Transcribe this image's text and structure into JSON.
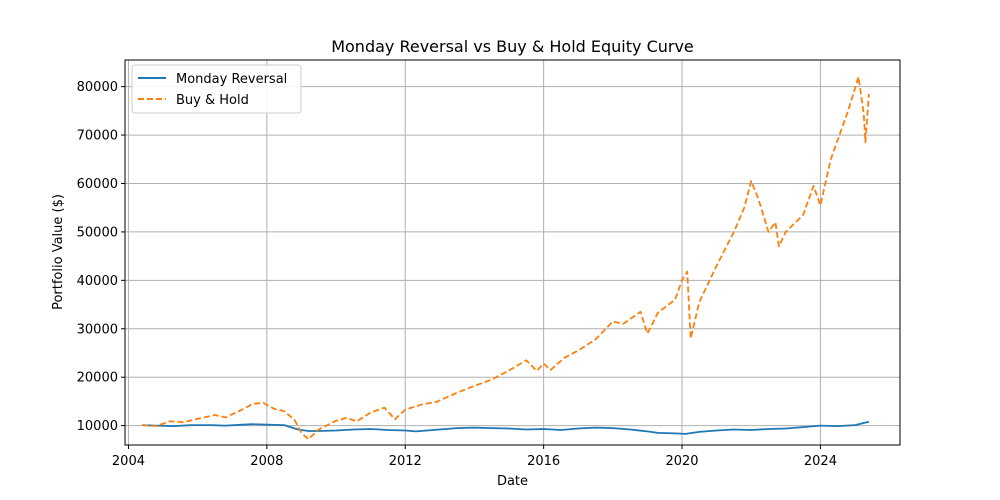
{
  "chart_data": {
    "type": "line",
    "title": "Monday Reversal vs Buy & Hold Equity Curve",
    "xlabel": "Date",
    "ylabel": "Portfolio Value ($)",
    "xlim": [
      2003.9,
      2026.3
    ],
    "ylim": [
      6000,
      85500
    ],
    "x_ticks": [
      2004,
      2008,
      2012,
      2016,
      2020,
      2024
    ],
    "x_tick_labels": [
      "2004",
      "2008",
      "2012",
      "2016",
      "2020",
      "2024"
    ],
    "y_ticks": [
      10000,
      20000,
      30000,
      40000,
      50000,
      60000,
      70000,
      80000
    ],
    "y_tick_labels": [
      "10000",
      "20000",
      "30000",
      "40000",
      "50000",
      "60000",
      "70000",
      "80000"
    ],
    "grid": true,
    "legend_position": "top-left",
    "series": [
      {
        "name": "Monday Reversal",
        "color": "#1f77b4",
        "style": "solid",
        "points": [
          [
            2004.4,
            10100
          ],
          [
            2004.8,
            10000
          ],
          [
            2005.3,
            9900
          ],
          [
            2005.8,
            10100
          ],
          [
            2006.4,
            10100
          ],
          [
            2006.8,
            10000
          ],
          [
            2007.3,
            10200
          ],
          [
            2007.6,
            10300
          ],
          [
            2008.0,
            10200
          ],
          [
            2008.5,
            10100
          ],
          [
            2008.9,
            9200
          ],
          [
            2009.2,
            8900
          ],
          [
            2009.5,
            8900
          ],
          [
            2010.0,
            9000
          ],
          [
            2010.5,
            9200
          ],
          [
            2011.0,
            9300
          ],
          [
            2011.5,
            9100
          ],
          [
            2012.0,
            9000
          ],
          [
            2012.3,
            8800
          ],
          [
            2013.0,
            9200
          ],
          [
            2013.5,
            9500
          ],
          [
            2014.0,
            9600
          ],
          [
            2014.5,
            9500
          ],
          [
            2015.0,
            9400
          ],
          [
            2015.5,
            9200
          ],
          [
            2016.0,
            9300
          ],
          [
            2016.5,
            9100
          ],
          [
            2017.0,
            9400
          ],
          [
            2017.5,
            9600
          ],
          [
            2018.0,
            9500
          ],
          [
            2018.5,
            9200
          ],
          [
            2019.0,
            8800
          ],
          [
            2019.3,
            8500
          ],
          [
            2019.8,
            8400
          ],
          [
            2020.1,
            8300
          ],
          [
            2020.5,
            8700
          ],
          [
            2021.0,
            9000
          ],
          [
            2021.5,
            9200
          ],
          [
            2022.0,
            9100
          ],
          [
            2022.5,
            9300
          ],
          [
            2023.0,
            9400
          ],
          [
            2023.5,
            9700
          ],
          [
            2024.0,
            10000
          ],
          [
            2024.5,
            9900
          ],
          [
            2025.0,
            10100
          ],
          [
            2025.4,
            10800
          ]
        ]
      },
      {
        "name": "Buy & Hold",
        "color": "#ff7f0e",
        "style": "dashed",
        "points": [
          [
            2004.4,
            10100
          ],
          [
            2004.8,
            9900
          ],
          [
            2005.2,
            10900
          ],
          [
            2005.6,
            10700
          ],
          [
            2006.0,
            11400
          ],
          [
            2006.5,
            12200
          ],
          [
            2006.8,
            11700
          ],
          [
            2007.2,
            13000
          ],
          [
            2007.6,
            14500
          ],
          [
            2007.9,
            14700
          ],
          [
            2008.2,
            13500
          ],
          [
            2008.5,
            13000
          ],
          [
            2008.8,
            11200
          ],
          [
            2009.0,
            8500
          ],
          [
            2009.2,
            7200
          ],
          [
            2009.5,
            9200
          ],
          [
            2010.0,
            11000
          ],
          [
            2010.3,
            11600
          ],
          [
            2010.6,
            10900
          ],
          [
            2011.0,
            12700
          ],
          [
            2011.4,
            13700
          ],
          [
            2011.7,
            11300
          ],
          [
            2012.0,
            13300
          ],
          [
            2012.5,
            14400
          ],
          [
            2012.9,
            14900
          ],
          [
            2013.5,
            16800
          ],
          [
            2014.0,
            18200
          ],
          [
            2014.5,
            19500
          ],
          [
            2015.0,
            21400
          ],
          [
            2015.5,
            23500
          ],
          [
            2015.8,
            21300
          ],
          [
            2016.0,
            22800
          ],
          [
            2016.2,
            21500
          ],
          [
            2016.6,
            24000
          ],
          [
            2017.0,
            25500
          ],
          [
            2017.5,
            27800
          ],
          [
            2018.0,
            31500
          ],
          [
            2018.3,
            31000
          ],
          [
            2018.8,
            33500
          ],
          [
            2019.0,
            29000
          ],
          [
            2019.3,
            33300
          ],
          [
            2019.8,
            36000
          ],
          [
            2020.0,
            40000
          ],
          [
            2020.15,
            41800
          ],
          [
            2020.25,
            28000
          ],
          [
            2020.5,
            35500
          ],
          [
            2020.8,
            40000
          ],
          [
            2021.0,
            43000
          ],
          [
            2021.5,
            50000
          ],
          [
            2021.8,
            55000
          ],
          [
            2022.0,
            60500
          ],
          [
            2022.2,
            57000
          ],
          [
            2022.5,
            50000
          ],
          [
            2022.7,
            52000
          ],
          [
            2022.8,
            47000
          ],
          [
            2023.0,
            50000
          ],
          [
            2023.5,
            53500
          ],
          [
            2023.8,
            59500
          ],
          [
            2024.0,
            55500
          ],
          [
            2024.3,
            65000
          ],
          [
            2024.6,
            71000
          ],
          [
            2024.8,
            75000
          ],
          [
            2025.1,
            82000
          ],
          [
            2025.25,
            74500
          ],
          [
            2025.3,
            68500
          ],
          [
            2025.4,
            78500
          ]
        ]
      }
    ]
  }
}
